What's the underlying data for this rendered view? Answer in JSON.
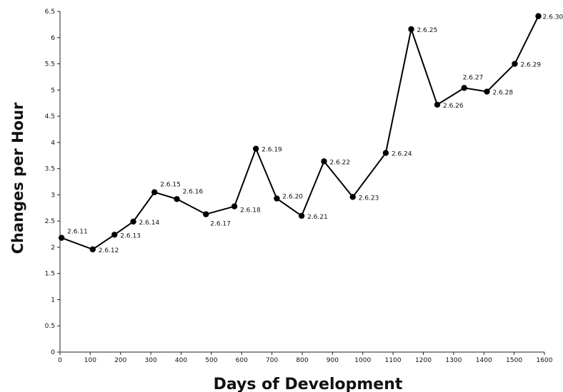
{
  "chart_data": {
    "type": "line",
    "title": "",
    "xlabel": "Days of Development",
    "ylabel": "Changes per Hour",
    "xlim": [
      0,
      1600
    ],
    "ylim": [
      0,
      6.5
    ],
    "x_ticks": [
      "0",
      "100",
      "200",
      "300",
      "400",
      "500",
      "600",
      "700",
      "800",
      "900",
      "1000",
      "1100",
      "1200",
      "1300",
      "1400",
      "1500",
      "1600"
    ],
    "y_ticks": [
      "0",
      "0.5",
      "1",
      "1.5",
      "2",
      "2.5",
      "3",
      "3.5",
      "4",
      "4.5",
      "5",
      "5.5",
      "6",
      "6.5"
    ],
    "grid": false,
    "legend": "none",
    "line_color": "#000000",
    "series": [
      {
        "points": [
          {
            "x": 5,
            "y": 2.18,
            "label": "2.6.11"
          },
          {
            "x": 108,
            "y": 1.96,
            "label": "2.6.12"
          },
          {
            "x": 180,
            "y": 2.24,
            "label": "2.6.13"
          },
          {
            "x": 242,
            "y": 2.49,
            "label": "2.6.14"
          },
          {
            "x": 312,
            "y": 3.05,
            "label": "2.6.15"
          },
          {
            "x": 386,
            "y": 2.92,
            "label": "2.6.16"
          },
          {
            "x": 482,
            "y": 2.63,
            "label": "2.6.17"
          },
          {
            "x": 576,
            "y": 2.78,
            "label": "2.6.18"
          },
          {
            "x": 647,
            "y": 3.88,
            "label": "2.6.19"
          },
          {
            "x": 716,
            "y": 2.93,
            "label": "2.6.20"
          },
          {
            "x": 798,
            "y": 2.6,
            "label": "2.6.21"
          },
          {
            "x": 872,
            "y": 3.64,
            "label": "2.6.22"
          },
          {
            "x": 967,
            "y": 2.96,
            "label": "2.6.23"
          },
          {
            "x": 1076,
            "y": 3.8,
            "label": "2.6.24"
          },
          {
            "x": 1160,
            "y": 6.16,
            "label": "2.6.25"
          },
          {
            "x": 1246,
            "y": 4.72,
            "label": "2.6.26"
          },
          {
            "x": 1335,
            "y": 5.04,
            "label": "2.6.27"
          },
          {
            "x": 1410,
            "y": 4.97,
            "label": "2.6.28"
          },
          {
            "x": 1502,
            "y": 5.5,
            "label": "2.6.29"
          },
          {
            "x": 1580,
            "y": 6.41,
            "label": "2.6.30"
          }
        ]
      }
    ]
  }
}
